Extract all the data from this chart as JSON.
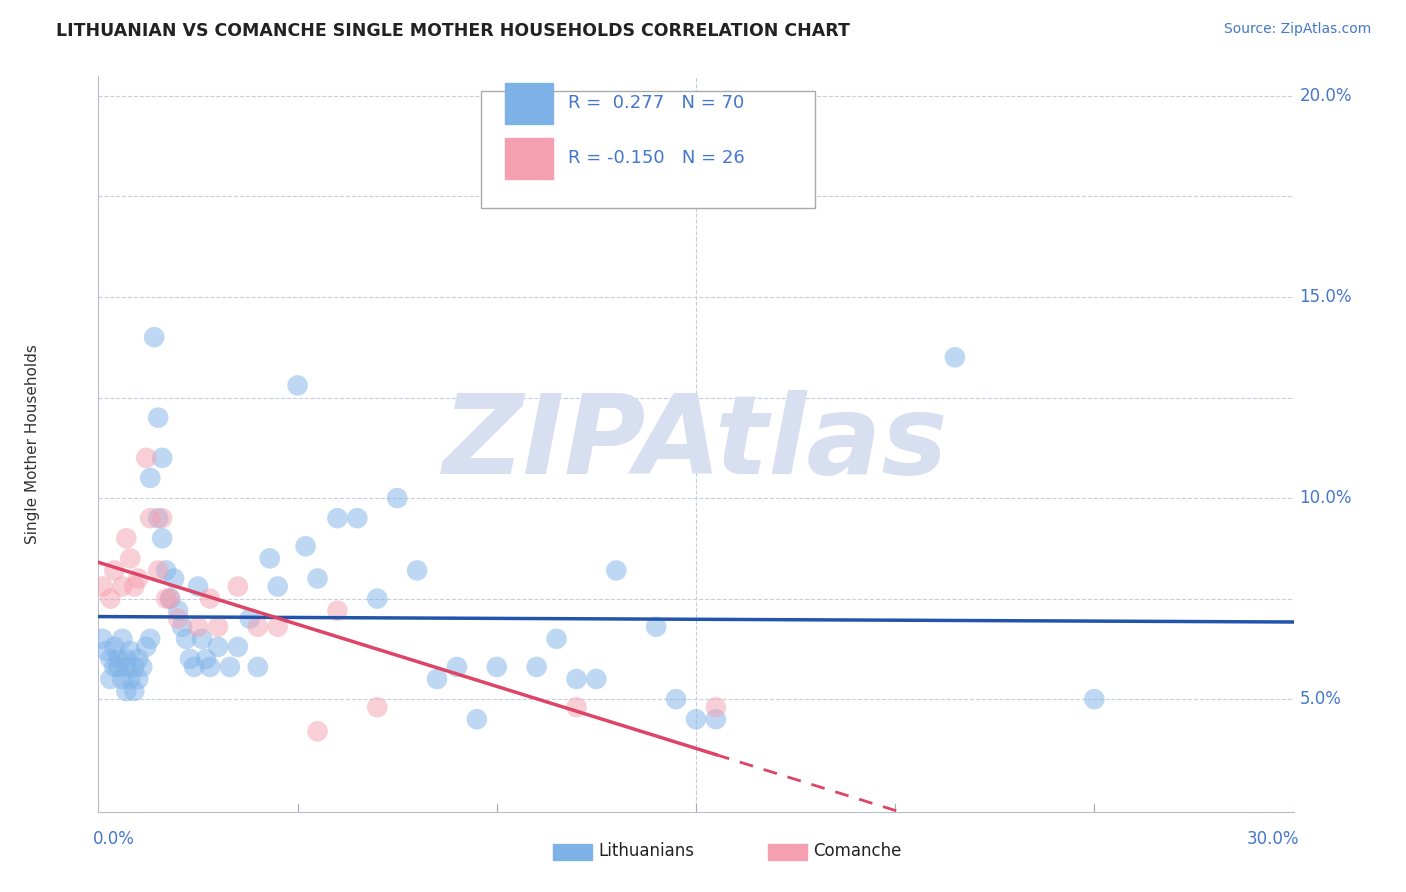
{
  "title": "LITHUANIAN VS COMANCHE SINGLE MOTHER HOUSEHOLDS CORRELATION CHART",
  "source_text": "Source: ZipAtlas.com",
  "ylabel": "Single Mother Households",
  "xlim": [
    0.0,
    0.3
  ],
  "ylim": [
    0.022,
    0.205
  ],
  "grid_yticks": [
    0.05,
    0.075,
    0.1,
    0.125,
    0.15,
    0.175,
    0.2
  ],
  "grid_color": "#c8cce0",
  "background_color": "#ffffff",
  "watermark": "ZIPAtlas",
  "watermark_color": "#d8dff0",
  "legend_label1": "Lithuanians",
  "legend_label2": "Comanche",
  "blue_color": "#7fb3e8",
  "pink_color": "#f4a0b0",
  "trend_blue_color": "#2255aa",
  "trend_pink_color": "#dd4466",
  "label_color": "#4477cc",
  "R_blue": 0.277,
  "N_blue": 70,
  "R_pink": -0.15,
  "N_pink": 26,
  "blue_scatter": [
    [
      0.001,
      0.065
    ],
    [
      0.002,
      0.062
    ],
    [
      0.003,
      0.06
    ],
    [
      0.003,
      0.055
    ],
    [
      0.004,
      0.063
    ],
    [
      0.004,
      0.058
    ],
    [
      0.005,
      0.06
    ],
    [
      0.005,
      0.058
    ],
    [
      0.006,
      0.065
    ],
    [
      0.006,
      0.055
    ],
    [
      0.007,
      0.06
    ],
    [
      0.007,
      0.052
    ],
    [
      0.007,
      0.058
    ],
    [
      0.008,
      0.062
    ],
    [
      0.008,
      0.055
    ],
    [
      0.009,
      0.058
    ],
    [
      0.009,
      0.052
    ],
    [
      0.01,
      0.06
    ],
    [
      0.01,
      0.055
    ],
    [
      0.011,
      0.058
    ],
    [
      0.012,
      0.063
    ],
    [
      0.013,
      0.105
    ],
    [
      0.013,
      0.065
    ],
    [
      0.014,
      0.14
    ],
    [
      0.015,
      0.12
    ],
    [
      0.015,
      0.095
    ],
    [
      0.016,
      0.11
    ],
    [
      0.016,
      0.09
    ],
    [
      0.017,
      0.082
    ],
    [
      0.018,
      0.075
    ],
    [
      0.019,
      0.08
    ],
    [
      0.02,
      0.072
    ],
    [
      0.021,
      0.068
    ],
    [
      0.022,
      0.065
    ],
    [
      0.023,
      0.06
    ],
    [
      0.024,
      0.058
    ],
    [
      0.025,
      0.078
    ],
    [
      0.026,
      0.065
    ],
    [
      0.027,
      0.06
    ],
    [
      0.028,
      0.058
    ],
    [
      0.03,
      0.063
    ],
    [
      0.033,
      0.058
    ],
    [
      0.035,
      0.063
    ],
    [
      0.038,
      0.07
    ],
    [
      0.04,
      0.058
    ],
    [
      0.043,
      0.085
    ],
    [
      0.045,
      0.078
    ],
    [
      0.05,
      0.128
    ],
    [
      0.052,
      0.088
    ],
    [
      0.055,
      0.08
    ],
    [
      0.06,
      0.095
    ],
    [
      0.065,
      0.095
    ],
    [
      0.07,
      0.075
    ],
    [
      0.075,
      0.1
    ],
    [
      0.08,
      0.082
    ],
    [
      0.085,
      0.055
    ],
    [
      0.09,
      0.058
    ],
    [
      0.095,
      0.045
    ],
    [
      0.1,
      0.058
    ],
    [
      0.11,
      0.058
    ],
    [
      0.115,
      0.065
    ],
    [
      0.12,
      0.055
    ],
    [
      0.125,
      0.055
    ],
    [
      0.13,
      0.082
    ],
    [
      0.14,
      0.068
    ],
    [
      0.145,
      0.05
    ],
    [
      0.15,
      0.045
    ],
    [
      0.155,
      0.045
    ],
    [
      0.215,
      0.135
    ],
    [
      0.25,
      0.05
    ]
  ],
  "pink_scatter": [
    [
      0.001,
      0.078
    ],
    [
      0.003,
      0.075
    ],
    [
      0.004,
      0.082
    ],
    [
      0.006,
      0.078
    ],
    [
      0.007,
      0.09
    ],
    [
      0.008,
      0.085
    ],
    [
      0.009,
      0.078
    ],
    [
      0.01,
      0.08
    ],
    [
      0.012,
      0.11
    ],
    [
      0.013,
      0.095
    ],
    [
      0.015,
      0.082
    ],
    [
      0.016,
      0.095
    ],
    [
      0.017,
      0.075
    ],
    [
      0.018,
      0.075
    ],
    [
      0.02,
      0.07
    ],
    [
      0.025,
      0.068
    ],
    [
      0.028,
      0.075
    ],
    [
      0.03,
      0.068
    ],
    [
      0.035,
      0.078
    ],
    [
      0.04,
      0.068
    ],
    [
      0.045,
      0.068
    ],
    [
      0.055,
      0.042
    ],
    [
      0.06,
      0.072
    ],
    [
      0.07,
      0.048
    ],
    [
      0.12,
      0.048
    ],
    [
      0.155,
      0.048
    ]
  ],
  "right_ytick_labels": [
    [
      0.05,
      "5.0%"
    ],
    [
      0.1,
      "10.0%"
    ],
    [
      0.15,
      "15.0%"
    ],
    [
      0.2,
      "20.0%"
    ]
  ],
  "bottom_xtick_labels": [
    [
      0.0,
      "0.0%"
    ],
    [
      0.3,
      "30.0%"
    ]
  ],
  "pink_trend_solid_end": 0.155
}
